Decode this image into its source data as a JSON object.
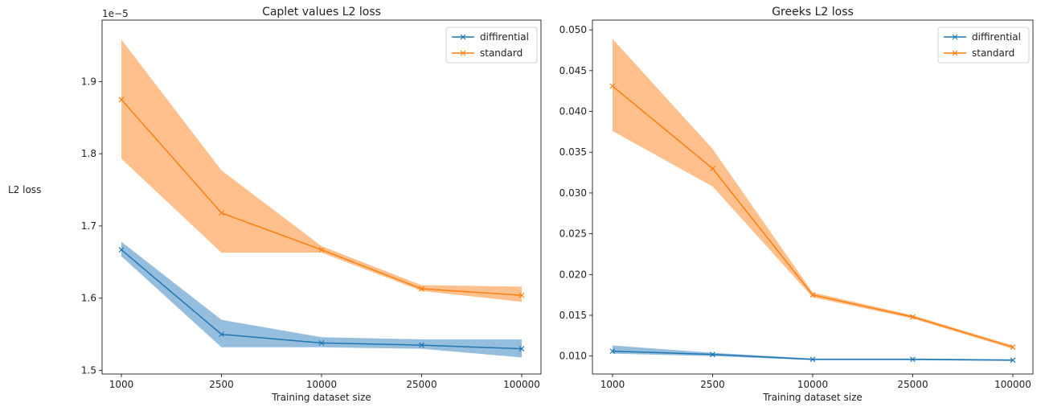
{
  "figure": {
    "shared_ylabel": "L2 loss"
  },
  "colors": {
    "differential": "#1f77b4",
    "standard": "#ff7f0e",
    "differential_band": "#8fb9db",
    "standard_band": "#ffbd87"
  },
  "chart_data": [
    {
      "type": "line",
      "title": "Caplet values L2 loss",
      "xlabel": "Training dataset size",
      "ylabel": "L2 loss",
      "x_scale": "categorical",
      "categories": [
        "1000",
        "2500",
        "10000",
        "25000",
        "100000"
      ],
      "y_offset_label": "1e−5",
      "yticks": [
        "1.5",
        "1.6",
        "1.7",
        "1.8",
        "1.9"
      ],
      "ylim": [
        1.495,
        1.985
      ],
      "grid": false,
      "legend_position": "top-right",
      "series": [
        {
          "name": "diffirential",
          "marker": "x",
          "values": [
            1.667,
            1.55,
            1.538,
            1.535,
            1.53
          ],
          "band_upper": [
            1.678,
            1.57,
            1.546,
            1.543,
            1.543
          ],
          "band_lower": [
            1.658,
            1.532,
            1.532,
            1.53,
            1.518
          ]
        },
        {
          "name": "standard",
          "marker": "x",
          "values": [
            1.875,
            1.718,
            1.667,
            1.613,
            1.604
          ],
          "band_upper": [
            1.958,
            1.777,
            1.672,
            1.618,
            1.616
          ],
          "band_lower": [
            1.793,
            1.663,
            1.663,
            1.61,
            1.595
          ]
        }
      ]
    },
    {
      "type": "line",
      "title": "Greeks L2 loss",
      "xlabel": "Training dataset size",
      "ylabel": "",
      "x_scale": "categorical",
      "categories": [
        "1000",
        "2500",
        "10000",
        "25000",
        "100000"
      ],
      "yticks": [
        "0.010",
        "0.015",
        "0.020",
        "0.025",
        "0.030",
        "0.035",
        "0.040",
        "0.045",
        "0.050"
      ],
      "ylim": [
        0.0078,
        0.0512
      ],
      "grid": false,
      "legend_position": "top-right",
      "series": [
        {
          "name": "diffirential",
          "marker": "x",
          "values": [
            0.0106,
            0.0102,
            0.0096,
            0.0096,
            0.0095
          ],
          "band_upper": [
            0.0113,
            0.0104,
            0.0097,
            0.0097,
            0.0096
          ],
          "band_lower": [
            0.0103,
            0.01,
            0.0095,
            0.0095,
            0.0094
          ]
        },
        {
          "name": "standard",
          "marker": "x",
          "values": [
            0.0431,
            0.033,
            0.0175,
            0.0148,
            0.0111
          ],
          "band_upper": [
            0.0489,
            0.0354,
            0.0178,
            0.015,
            0.0113
          ],
          "band_lower": [
            0.0376,
            0.0308,
            0.0172,
            0.0146,
            0.0109
          ]
        }
      ]
    }
  ]
}
